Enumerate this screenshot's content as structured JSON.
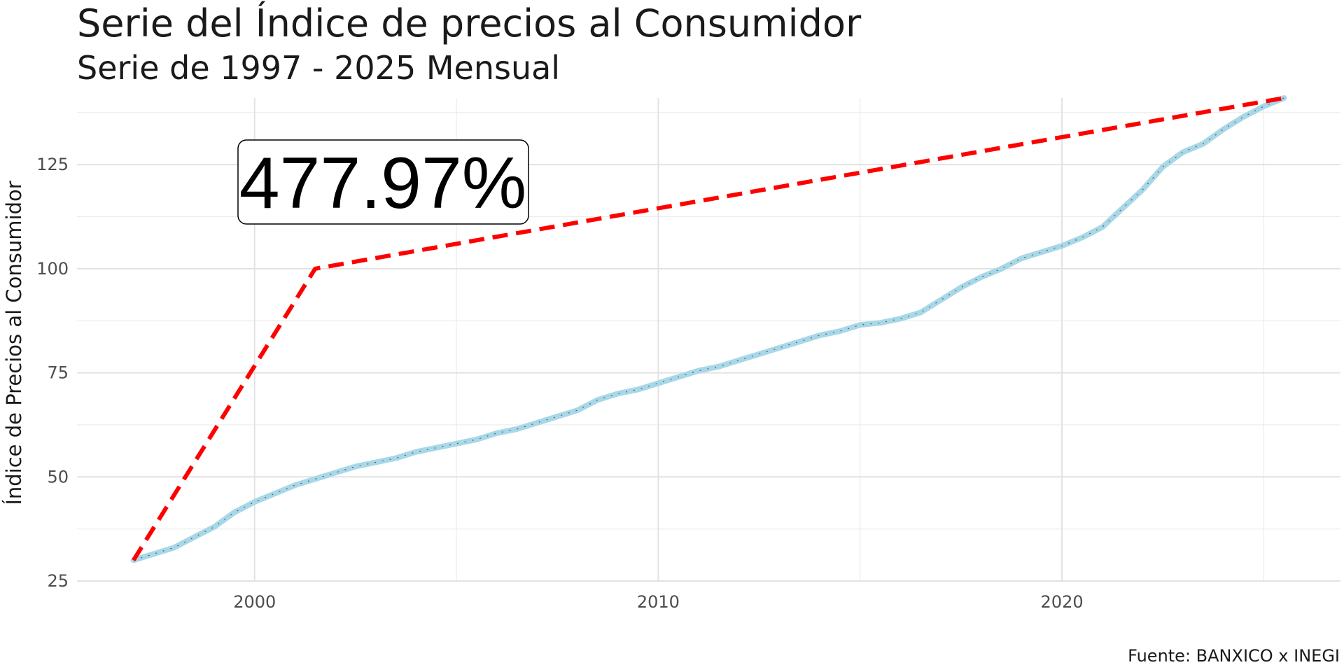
{
  "chart_data": {
    "type": "line",
    "title": "Serie del Índice de precios al Consumidor",
    "subtitle": "Serie de 1997 - 2025 Mensual",
    "ylabel": "Índice de Precios al Consumidor",
    "xlabel": "",
    "caption": "Fuente: BANXICO x INEGI",
    "annotation": "477.97%",
    "xlim": [
      1995.6,
      2026.9
    ],
    "ylim": [
      25.0,
      141.0
    ],
    "x_ticks": [
      2000,
      2010,
      2020
    ],
    "y_ticks": [
      25,
      50,
      75,
      100,
      125
    ],
    "grid": true,
    "series": [
      {
        "color": "#a8d8e8",
        "style": "solid",
        "x": [
          1997.0,
          1997.5,
          1998.0,
          1998.5,
          1999.0,
          1999.5,
          2000.0,
          2000.5,
          2001.0,
          2001.5,
          2002.0,
          2002.5,
          2003.0,
          2003.5,
          2004.0,
          2004.5,
          2005.0,
          2005.5,
          2006.0,
          2006.5,
          2007.0,
          2007.5,
          2008.0,
          2008.5,
          2009.0,
          2009.5,
          2010.0,
          2010.5,
          2011.0,
          2011.5,
          2012.0,
          2012.5,
          2013.0,
          2013.5,
          2014.0,
          2014.5,
          2015.0,
          2015.5,
          2016.0,
          2016.5,
          2017.0,
          2017.5,
          2018.0,
          2018.5,
          2019.0,
          2019.5,
          2020.0,
          2020.5,
          2021.0,
          2021.5,
          2022.0,
          2022.5,
          2023.0,
          2023.5,
          2024.0,
          2024.5,
          2025.0,
          2025.5
        ],
        "y": [
          30.0,
          31.5,
          33.0,
          35.5,
          38.0,
          41.5,
          44.0,
          46.0,
          48.0,
          49.5,
          51.0,
          52.5,
          53.5,
          54.5,
          56.0,
          57.0,
          58.0,
          59.0,
          60.5,
          61.5,
          63.0,
          64.5,
          66.0,
          68.5,
          70.0,
          71.0,
          72.5,
          74.0,
          75.5,
          76.5,
          78.0,
          79.5,
          81.0,
          82.5,
          84.0,
          85.0,
          86.5,
          87.0,
          88.0,
          89.5,
          92.5,
          95.5,
          98.0,
          100.0,
          102.5,
          104.0,
          105.5,
          107.5,
          110.0,
          114.5,
          119.0,
          124.5,
          128.0,
          130.0,
          133.5,
          136.5,
          139.0,
          141.0
        ]
      },
      {
        "color": "#ff0000",
        "style": "dashed",
        "x": [
          1997.0,
          2001.5,
          2025.5
        ],
        "y": [
          30.0,
          100.0,
          141.0
        ]
      }
    ]
  }
}
